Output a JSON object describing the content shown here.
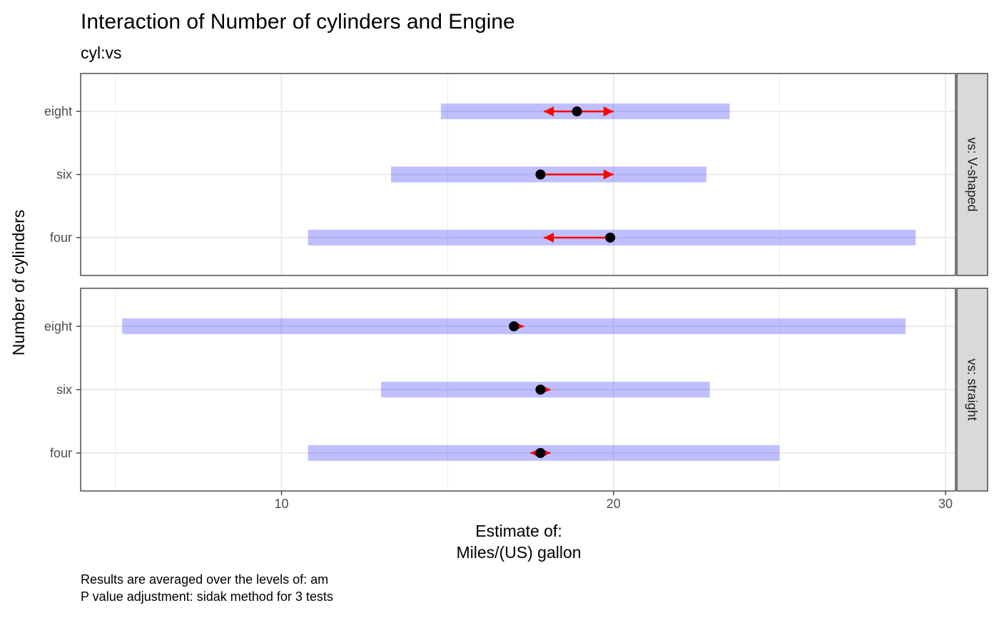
{
  "chart_data": {
    "type": "scatter",
    "title": "Interaction of Number of cylinders and Engine",
    "subtitle": "cyl:vs",
    "xlabel_lines": [
      "Estimate of:",
      "Miles/(US) gallon"
    ],
    "ylabel": "Number of cylinders",
    "caption_lines": [
      "Results are averaged over the levels of: am",
      "P value adjustment: sidak method for 3 tests"
    ],
    "xlim": [
      3.95,
      30.3
    ],
    "x_ticks": [
      10,
      20,
      30
    ],
    "x_tick_labels": [
      "10",
      "20",
      "30"
    ],
    "grid": true,
    "categories": [
      "four",
      "six",
      "eight"
    ],
    "colors": {
      "ci_band": "#0000ff",
      "ci_opacity": 0.25,
      "comparison_arrow": "#ff0000",
      "point": "#000000",
      "strip_fill": "#d9d9d9",
      "grid_major": "#ebebeb",
      "panel_border": "#333333"
    },
    "panels": [
      {
        "strip": "vs: V-shaped",
        "rows": [
          {
            "level": "eight",
            "estimate": 18.9,
            "ci_low": 14.8,
            "ci_high": 23.5,
            "arrow_left": 17.9,
            "arrow_right": 20.0
          },
          {
            "level": "six",
            "estimate": 17.8,
            "ci_low": 13.3,
            "ci_high": 22.8,
            "arrow_left": null,
            "arrow_right": 20.0
          },
          {
            "level": "four",
            "estimate": 19.9,
            "ci_low": 10.8,
            "ci_high": 29.1,
            "arrow_left": 17.9,
            "arrow_right": null
          }
        ]
      },
      {
        "strip": "vs: straight",
        "rows": [
          {
            "level": "eight",
            "estimate": 17.0,
            "ci_low": 5.2,
            "ci_high": 28.8,
            "arrow_left": null,
            "arrow_right": 17.3
          },
          {
            "level": "six",
            "estimate": 17.8,
            "ci_low": 13.0,
            "ci_high": 22.9,
            "arrow_left": null,
            "arrow_right": 18.1
          },
          {
            "level": "four",
            "estimate": 17.8,
            "ci_low": 10.8,
            "ci_high": 25.0,
            "arrow_left": 17.5,
            "arrow_right": 18.1
          }
        ]
      }
    ]
  }
}
